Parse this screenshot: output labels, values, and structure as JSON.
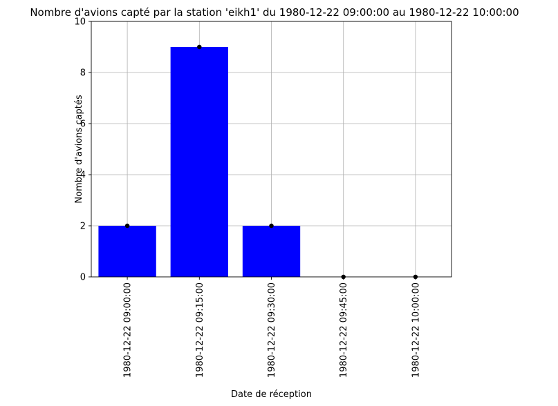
{
  "chart_data": {
    "type": "bar",
    "title": "Nombre d'avions capté par la station 'eikh1' du 1980-12-22 09:00:00 au 1980-12-22 10:00:00",
    "xlabel": "Date de réception",
    "ylabel": "Nombre d'avions captés",
    "categories": [
      "1980-12-22 09:00:00",
      "1980-12-22 09:15:00",
      "1980-12-22 09:30:00",
      "1980-12-22 09:45:00",
      "1980-12-22 10:00:00"
    ],
    "values": [
      2,
      9,
      2,
      0,
      0
    ],
    "ylim": [
      0,
      10
    ],
    "yticks": [
      0,
      2,
      4,
      6,
      8,
      10
    ],
    "bar_color": "#0000ff",
    "marker_color": "#000000",
    "grid": true,
    "legend": "none"
  }
}
